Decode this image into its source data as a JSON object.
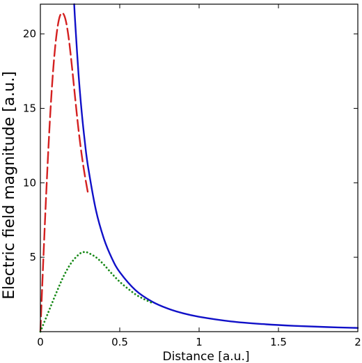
{
  "chart_data": {
    "type": "line",
    "title": "",
    "xlabel": "Distance [a.u.]",
    "ylabel": "Electric field magnitude [a.u.]",
    "xlim": [
      0,
      2
    ],
    "ylim": [
      0,
      22
    ],
    "x_ticks": [
      "0",
      "0.5",
      "1",
      "1.5",
      "2"
    ],
    "y_ticks": [
      "5",
      "10",
      "15",
      "20"
    ],
    "grid": false,
    "legend": "none",
    "series": [
      {
        "color": "#1010c8",
        "style": "solid",
        "x": [
          0.213,
          0.22,
          0.24,
          0.26,
          0.28,
          0.3,
          0.35,
          0.4,
          0.45,
          0.5,
          0.6,
          0.7,
          0.8,
          0.9,
          1.0,
          1.2,
          1.4,
          1.6,
          1.8,
          2.0
        ],
        "y": [
          22.0,
          20.66,
          17.36,
          14.79,
          12.76,
          11.11,
          8.16,
          6.25,
          4.94,
          4.0,
          2.78,
          2.04,
          1.56,
          1.23,
          1.0,
          0.69,
          0.51,
          0.39,
          0.31,
          0.25
        ]
      },
      {
        "color": "#d42020",
        "style": "dashed",
        "x": [
          0.0,
          0.02,
          0.04,
          0.06,
          0.08,
          0.1,
          0.12,
          0.14,
          0.16,
          0.18,
          0.2,
          0.22,
          0.24,
          0.26,
          0.28,
          0.3
        ],
        "y": [
          0.0,
          5.2,
          10.0,
          14.2,
          17.5,
          19.8,
          21.1,
          21.4,
          20.9,
          19.6,
          17.7,
          15.6,
          13.6,
          11.9,
          10.5,
          9.3
        ]
      },
      {
        "color": "#1a8a1a",
        "style": "dotted",
        "x": [
          0.0,
          0.05,
          0.1,
          0.15,
          0.2,
          0.25,
          0.28,
          0.3,
          0.35,
          0.4,
          0.45,
          0.5,
          0.55,
          0.6,
          0.65,
          0.7
        ],
        "y": [
          0.0,
          1.3,
          2.6,
          3.8,
          4.7,
          5.25,
          5.35,
          5.3,
          5.0,
          4.5,
          3.9,
          3.35,
          2.9,
          2.5,
          2.2,
          1.95
        ]
      }
    ]
  }
}
